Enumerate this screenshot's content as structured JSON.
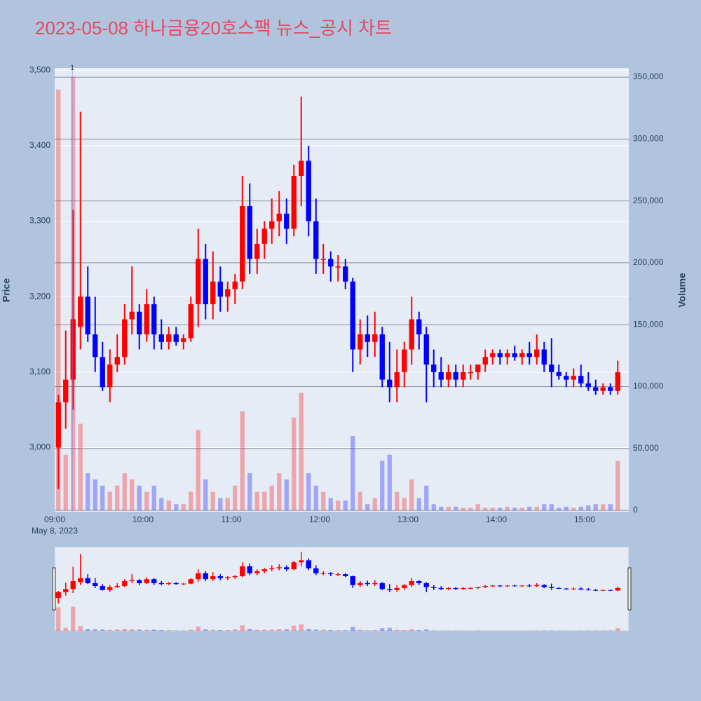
{
  "chart_data": {
    "type": "candlestick",
    "title": "2023-05-08 하나금융20호스팩 뉴스_공시 차트",
    "y_label": "Price",
    "y2_label": "Volume",
    "x_date_label": "May 8, 2023",
    "up_color": "#ff0000",
    "down_color": "#0000ff",
    "xlim": [
      "09:00",
      "15:30"
    ],
    "xticks": [
      "09:00",
      "10:00",
      "11:00",
      "12:00",
      "13:00",
      "14:00",
      "15:00"
    ],
    "ylim": [
      2915,
      3503
    ],
    "yticks": [
      {
        "value": 3000,
        "label": "3,000"
      },
      {
        "value": 3100,
        "label": "3,100"
      },
      {
        "value": 3200,
        "label": "3,200"
      },
      {
        "value": 3300,
        "label": "3,300"
      },
      {
        "value": 3400,
        "label": "3,400"
      },
      {
        "value": 3500,
        "label": "3,500"
      }
    ],
    "y2lim": [
      -1100,
      357400
    ],
    "y2ticks": [
      0,
      {
        "value": 50000,
        "label": "50,000"
      },
      {
        "value": 100000,
        "label": "100,000"
      },
      {
        "value": 150000,
        "label": "150,000"
      },
      {
        "value": 200000,
        "label": "200,000"
      },
      {
        "value": 250000,
        "label": "250,000"
      },
      {
        "value": 300000,
        "label": "300,000"
      },
      {
        "value": 350000,
        "label": "350,000"
      }
    ],
    "annotations": [
      {
        "x": "09:12",
        "text": "1"
      }
    ],
    "x": [
      "09:00",
      "09:05",
      "09:10",
      "09:15",
      "09:20",
      "09:25",
      "09:30",
      "09:35",
      "09:40",
      "09:45",
      "09:50",
      "09:55",
      "10:00",
      "10:05",
      "10:10",
      "10:15",
      "10:20",
      "10:25",
      "10:30",
      "10:35",
      "10:40",
      "10:45",
      "10:50",
      "10:55",
      "11:00",
      "11:05",
      "11:10",
      "11:15",
      "11:20",
      "11:25",
      "11:30",
      "11:35",
      "11:40",
      "11:45",
      "11:50",
      "11:55",
      "12:00",
      "12:05",
      "12:10",
      "12:15",
      "12:20",
      "12:25",
      "12:30",
      "12:35",
      "12:40",
      "12:45",
      "12:50",
      "12:55",
      "13:00",
      "13:05",
      "13:10",
      "13:15",
      "13:20",
      "13:25",
      "13:30",
      "13:35",
      "13:40",
      "13:45",
      "13:50",
      "13:55",
      "14:00",
      "14:05",
      "14:10",
      "14:15",
      "14:20",
      "14:25",
      "14:30",
      "14:35",
      "14:40",
      "14:45",
      "14:50",
      "14:55",
      "15:00",
      "15:05",
      "15:10",
      "15:15",
      "15:20"
    ],
    "open": [
      3000,
      3060,
      3090,
      3160,
      3200,
      3150,
      3120,
      3080,
      3110,
      3120,
      3170,
      3180,
      3150,
      3190,
      3150,
      3140,
      3150,
      3140,
      3145,
      3190,
      3250,
      3190,
      3220,
      3200,
      3210,
      3220,
      3320,
      3250,
      3270,
      3290,
      3300,
      3310,
      3290,
      3360,
      3380,
      3300,
      3250,
      3250,
      3240,
      3240,
      3220,
      3130,
      3150,
      3140,
      3150,
      3090,
      3080,
      3100,
      3130,
      3170,
      3150,
      3110,
      3100,
      3090,
      3100,
      3090,
      3100,
      3100,
      3110,
      3120,
      3125,
      3120,
      3125,
      3120,
      3125,
      3120,
      3130,
      3110,
      3100,
      3095,
      3090,
      3095,
      3085,
      3080,
      3075,
      3080,
      3075
    ],
    "high": [
      3070,
      3155,
      3315,
      3445,
      3240,
      3200,
      3140,
      3130,
      3150,
      3190,
      3240,
      3190,
      3210,
      3200,
      3170,
      3160,
      3160,
      3150,
      3200,
      3290,
      3270,
      3260,
      3240,
      3220,
      3230,
      3360,
      3350,
      3290,
      3300,
      3330,
      3340,
      3330,
      3375,
      3465,
      3400,
      3330,
      3270,
      3260,
      3255,
      3250,
      3225,
      3170,
      3175,
      3180,
      3160,
      3140,
      3130,
      3140,
      3200,
      3180,
      3160,
      3130,
      3120,
      3110,
      3110,
      3110,
      3110,
      3110,
      3130,
      3130,
      3130,
      3130,
      3135,
      3130,
      3140,
      3150,
      3140,
      3145,
      3110,
      3100,
      3105,
      3110,
      3100,
      3090,
      3085,
      3085,
      3115
    ],
    "low": [
      2945,
      3025,
      3050,
      3130,
      3140,
      3100,
      3075,
      3060,
      3100,
      3110,
      3150,
      3130,
      3140,
      3130,
      3130,
      3130,
      3135,
      3130,
      3140,
      3160,
      3170,
      3170,
      3180,
      3180,
      3190,
      3210,
      3230,
      3230,
      3250,
      3270,
      3280,
      3270,
      3280,
      3320,
      3280,
      3230,
      3230,
      3220,
      3220,
      3210,
      3100,
      3110,
      3120,
      3120,
      3080,
      3060,
      3060,
      3080,
      3110,
      3130,
      3060,
      3080,
      3080,
      3080,
      3080,
      3080,
      3090,
      3090,
      3100,
      3110,
      3110,
      3110,
      3115,
      3110,
      3110,
      3110,
      3100,
      3080,
      3090,
      3080,
      3080,
      3080,
      3075,
      3070,
      3070,
      3070,
      3070
    ],
    "close": [
      3060,
      3090,
      3170,
      3200,
      3150,
      3120,
      3080,
      3110,
      3120,
      3170,
      3180,
      3150,
      3190,
      3150,
      3140,
      3150,
      3140,
      3145,
      3190,
      3250,
      3190,
      3220,
      3200,
      3210,
      3220,
      3320,
      3250,
      3270,
      3290,
      3300,
      3310,
      3290,
      3360,
      3380,
      3300,
      3250,
      3250,
      3240,
      3240,
      3220,
      3130,
      3150,
      3140,
      3150,
      3090,
      3080,
      3100,
      3130,
      3170,
      3150,
      3110,
      3100,
      3090,
      3100,
      3090,
      3100,
      3100,
      3110,
      3120,
      3125,
      3120,
      3125,
      3120,
      3125,
      3120,
      3130,
      3110,
      3100,
      3095,
      3090,
      3095,
      3085,
      3080,
      3075,
      3080,
      3075,
      3100
    ],
    "volume": [
      340000,
      45000,
      350000,
      70000,
      30000,
      25000,
      20000,
      15000,
      20000,
      30000,
      25000,
      20000,
      15000,
      20000,
      10000,
      8000,
      5000,
      5000,
      15000,
      65000,
      25000,
      15000,
      10000,
      10000,
      20000,
      80000,
      30000,
      15000,
      15000,
      20000,
      30000,
      25000,
      75000,
      95000,
      30000,
      20000,
      15000,
      10000,
      8000,
      8000,
      60000,
      15000,
      5000,
      10000,
      40000,
      45000,
      15000,
      10000,
      25000,
      10000,
      20000,
      5000,
      3000,
      3000,
      3000,
      2000,
      2000,
      5000,
      2000,
      2000,
      2000,
      3000,
      2000,
      2000,
      3000,
      3000,
      5000,
      5000,
      2000,
      3000,
      2000,
      3000,
      4000,
      5000,
      5000,
      5000,
      40000
    ]
  }
}
